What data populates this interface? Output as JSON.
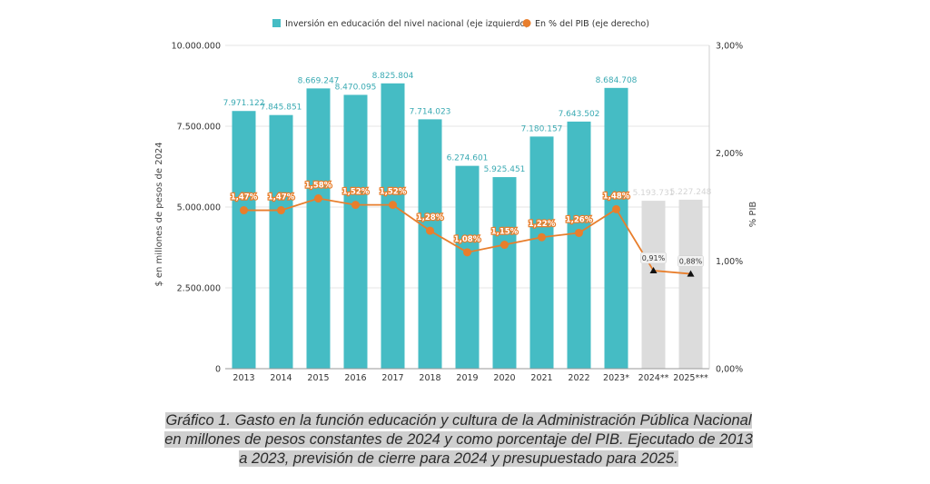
{
  "chart_data": {
    "type": "bar",
    "title": "",
    "categories": [
      "2013",
      "2014",
      "2015",
      "2016",
      "2017",
      "2018",
      "2019",
      "2020",
      "2021",
      "2022",
      "2023*",
      "2024**",
      "2025***"
    ],
    "legend": {
      "placement": "top-center",
      "bar_label": "Inversión en educación del nivel nacional (eje izquierdo)",
      "line_label": "En % del PIB (eje derecho)"
    },
    "bars": {
      "values": [
        7971122,
        7845851,
        8669247,
        8470095,
        8825804,
        7714023,
        6274601,
        5925451,
        7180157,
        7643502,
        8684708,
        5193731,
        5227248
      ],
      "labels": [
        "7.971.122",
        "7.845.851",
        "8.669.247",
        "8.470.095",
        "8.825.804",
        "7.714.023",
        "6.274.601",
        "5.925.451",
        "7.180.157",
        "7.643.502",
        "8.684.708",
        "5.193.731",
        "5.227.248"
      ],
      "color": "#45bcc4",
      "projected_color": "#dcdcdc",
      "projected_from_index": 11
    },
    "line": {
      "values": [
        1.47,
        1.47,
        1.58,
        1.52,
        1.52,
        1.28,
        1.08,
        1.15,
        1.22,
        1.26,
        1.48,
        0.91,
        0.88
      ],
      "labels": [
        "1,47%",
        "1,47%",
        "1,58%",
        "1,52%",
        "1,52%",
        "1,28%",
        "1,08%",
        "1,15%",
        "1,22%",
        "1,26%",
        "1,48%",
        "0,91%",
        "0,88%"
      ],
      "color": "#e87e2c",
      "projected_marker_color": "#111111"
    },
    "y_left": {
      "label": "$ en millones de pesos de 2024",
      "range": [
        0,
        10000000
      ],
      "ticks": [
        0,
        2500000,
        5000000,
        7500000,
        10000000
      ],
      "tick_labels": [
        "0",
        "2.500.000",
        "5.000.000",
        "7.500.000",
        "10.000.000"
      ]
    },
    "y_right": {
      "label": "% PIB",
      "range": [
        0,
        3
      ],
      "ticks": [
        0,
        1,
        2,
        3
      ],
      "tick_labels": [
        "0,00%",
        "1,00%",
        "2,00%",
        "3,00%"
      ]
    },
    "grid": true
  },
  "caption": {
    "line1": "Gráfico 1. Gasto en la función educación y cultura de la Administración Pública Nacional",
    "line2": "en millones de pesos constantes de 2024 y como porcentaje del PIB. Ejecutado de 2013",
    "line3": "a 2023, previsión de cierre para 2024 y presupuestado para 2025."
  }
}
